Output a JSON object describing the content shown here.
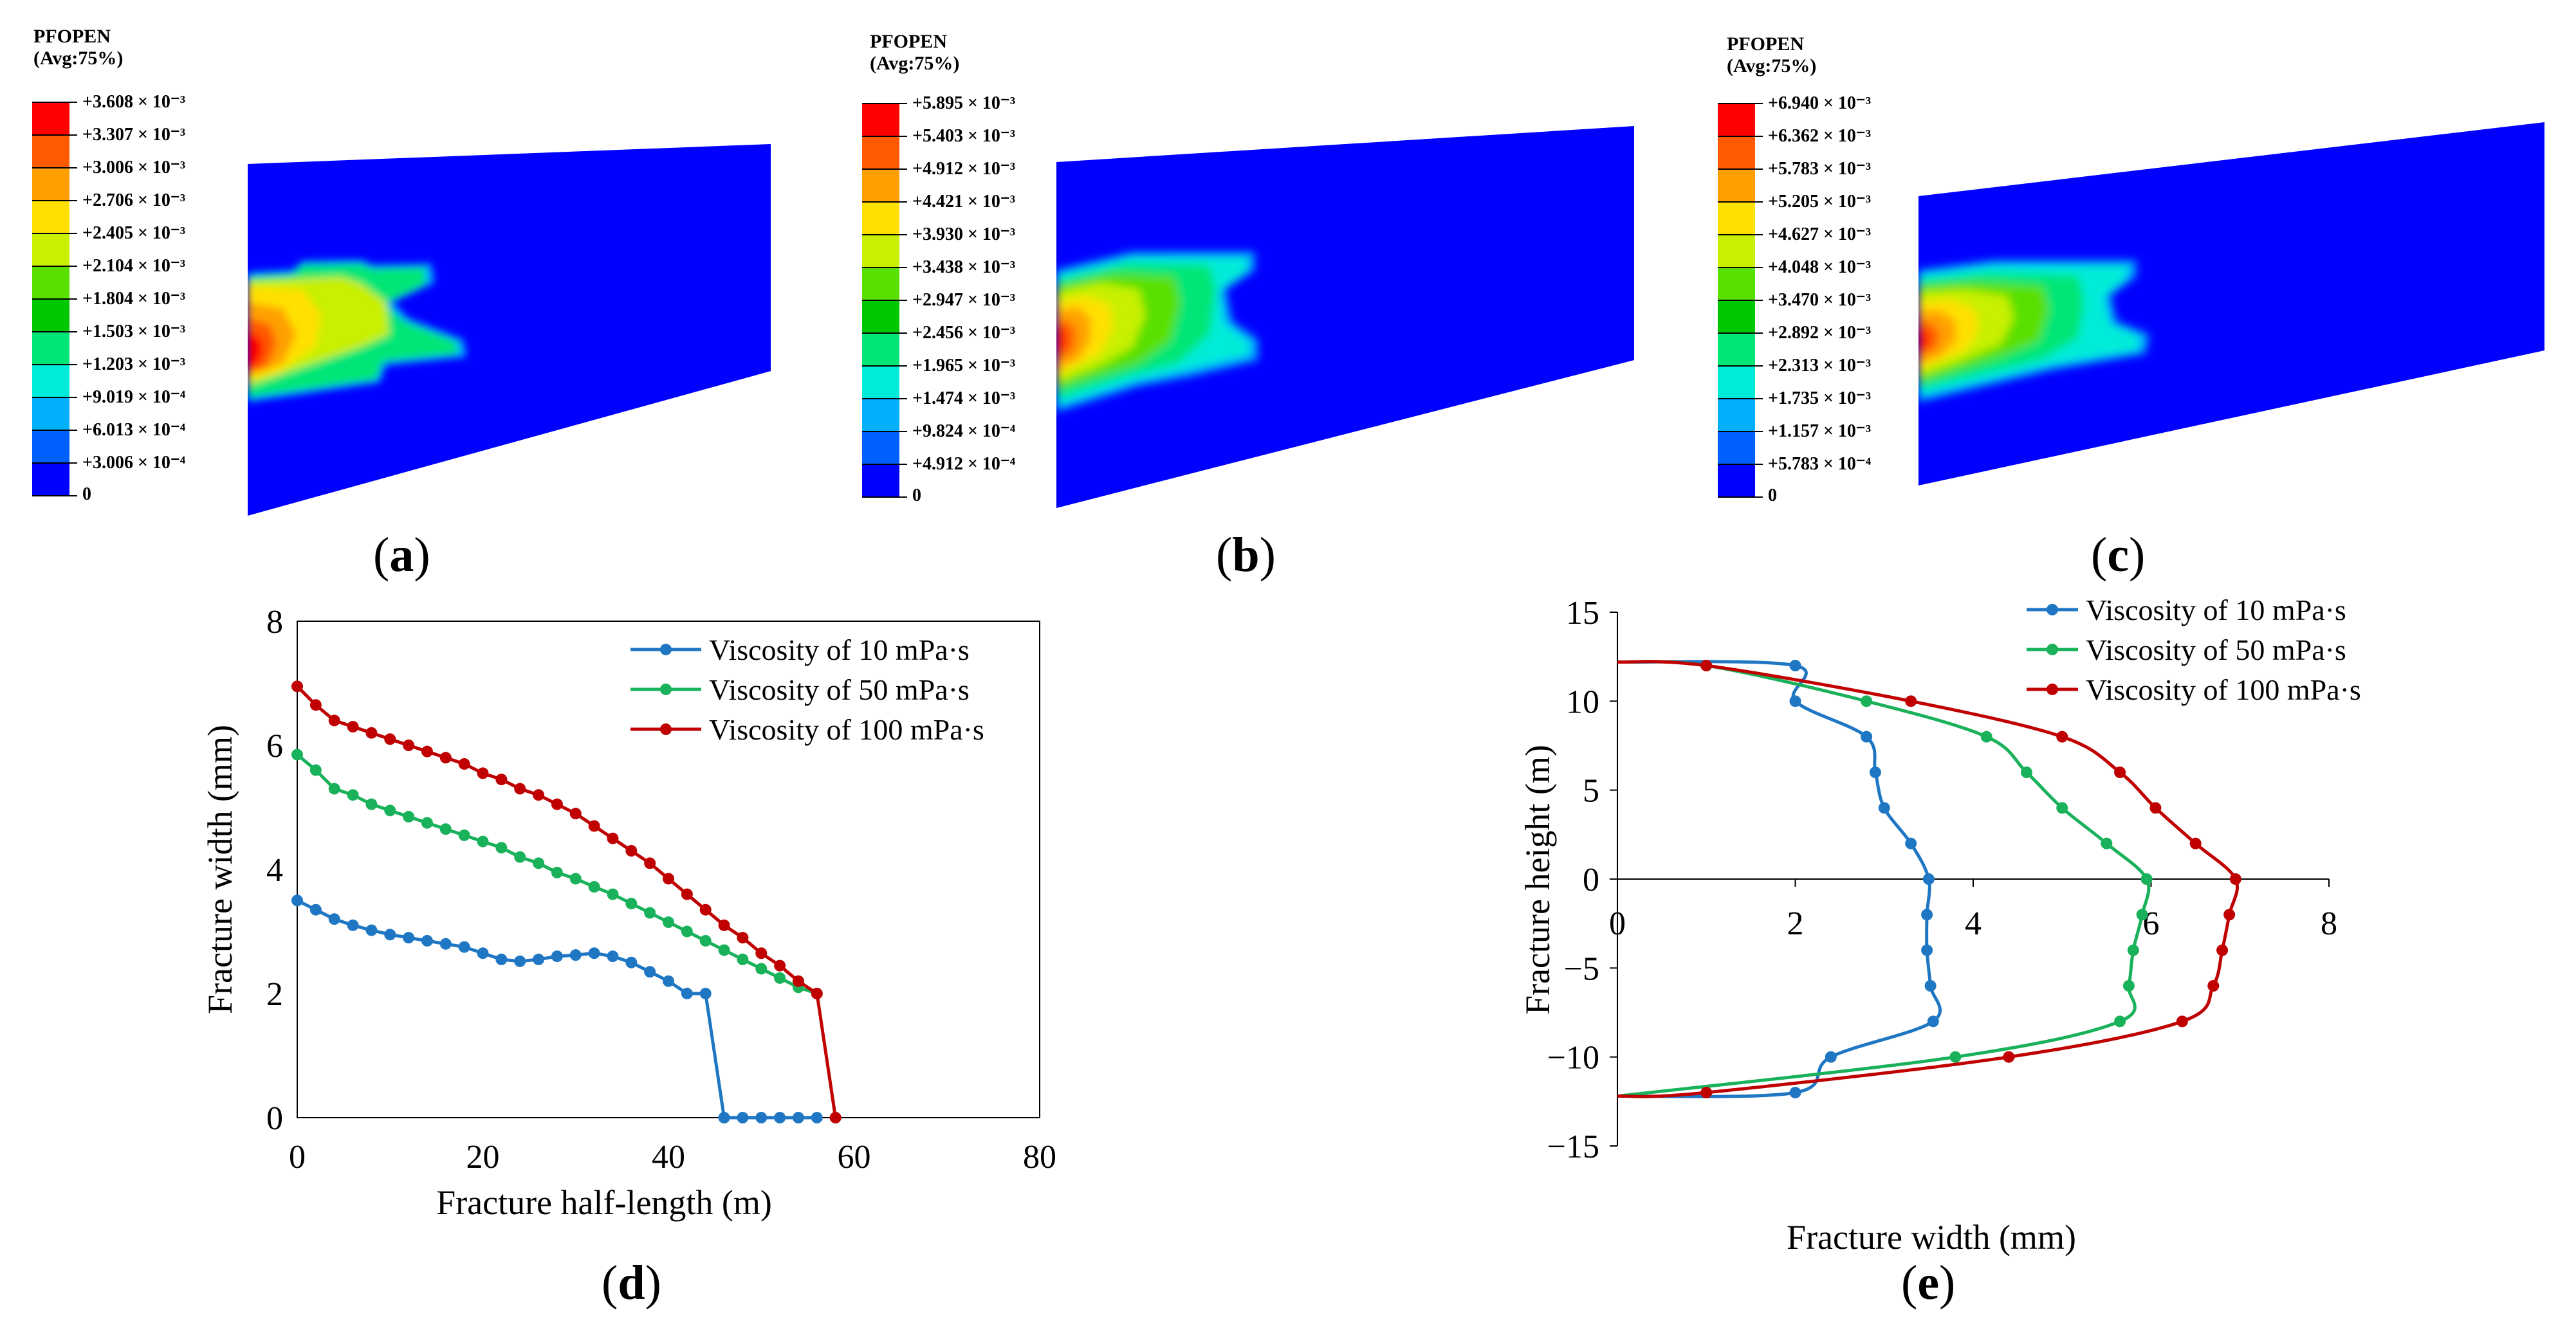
{
  "colors": {
    "scale": [
      "#0000ff",
      "#0060ff",
      "#00b0ff",
      "#00ecd8",
      "#00e676",
      "#00c800",
      "#5ae000",
      "#c8f000",
      "#ffe000",
      "#ffa000",
      "#ff5a00",
      "#ff0000"
    ],
    "series": [
      "#1f77c4",
      "#19b25a",
      "#c00000"
    ],
    "fracture_bg": "#0000ff"
  },
  "contours": [
    {
      "id": "a",
      "label": "a",
      "title_line1": "PFOPEN",
      "title_line2": "(Avg:75%)",
      "scale": [
        "+3.608 × 10⁻³",
        "+3.307 × 10⁻³",
        "+3.006 × 10⁻³",
        "+2.706 × 10⁻³",
        "+2.405 × 10⁻³",
        "+2.104 × 10⁻³",
        "+1.804 × 10⁻³",
        "+1.503 × 10⁻³",
        "+1.203 × 10⁻³",
        "+9.019 × 10⁻⁴",
        "+6.013 × 10⁻⁴",
        "+3.006 × 10⁻⁴",
        "0"
      ]
    },
    {
      "id": "b",
      "label": "b",
      "title_line1": "PFOPEN",
      "title_line2": "(Avg:75%)",
      "scale": [
        "+5.895 × 10⁻³",
        "+5.403 × 10⁻³",
        "+4.912 × 10⁻³",
        "+4.421 × 10⁻³",
        "+3.930 × 10⁻³",
        "+3.438 × 10⁻³",
        "+2.947 × 10⁻³",
        "+2.456 × 10⁻³",
        "+1.965 × 10⁻³",
        "+1.474 × 10⁻³",
        "+9.824 × 10⁻⁴",
        "+4.912 × 10⁻⁴",
        "0"
      ]
    },
    {
      "id": "c",
      "label": "c",
      "title_line1": "PFOPEN",
      "title_line2": "(Avg:75%)",
      "scale": [
        "+6.940 × 10⁻³",
        "+6.362 × 10⁻³",
        "+5.783 × 10⁻³",
        "+5.205 × 10⁻³",
        "+4.627 × 10⁻³",
        "+4.048 × 10⁻³",
        "+3.470 × 10⁻³",
        "+2.892 × 10⁻³",
        "+2.313 × 10⁻³",
        "+1.735 × 10⁻³",
        "+1.157 × 10⁻³",
        "+5.783 × 10⁻⁴",
        "0"
      ]
    }
  ],
  "chart_data": [
    {
      "id": "d",
      "panel_label": "d",
      "type": "line",
      "title": "",
      "xlabel": "Fracture half-length (m)",
      "ylabel": "Fracture width (mm)",
      "xlim": [
        0,
        80
      ],
      "ylim": [
        0,
        8
      ],
      "xticks": [
        "0",
        "20",
        "40",
        "60",
        "80"
      ],
      "yticks": [
        "0",
        "2",
        "4",
        "6",
        "8"
      ],
      "legend": "top-right",
      "series": [
        {
          "name": "Viscosity of 10 mPa·s",
          "x": [
            0,
            2,
            4,
            6,
            8,
            10,
            12,
            14,
            16,
            18,
            20,
            22,
            24,
            26,
            28,
            30,
            32,
            34,
            36,
            38,
            40,
            42,
            44,
            46,
            48,
            50,
            52,
            54,
            56
          ],
          "y": [
            3.5,
            3.35,
            3.2,
            3.1,
            3.02,
            2.95,
            2.9,
            2.85,
            2.8,
            2.75,
            2.65,
            2.55,
            2.52,
            2.55,
            2.6,
            2.62,
            2.65,
            2.6,
            2.5,
            2.35,
            2.2,
            2.0,
            2.0,
            0,
            0,
            0,
            0,
            0,
            0
          ]
        },
        {
          "name": "Viscosity of 50 mPa·s",
          "x": [
            0,
            2,
            4,
            6,
            8,
            10,
            12,
            14,
            16,
            18,
            20,
            22,
            24,
            26,
            28,
            30,
            32,
            34,
            36,
            38,
            40,
            42,
            44,
            46,
            48,
            50,
            52,
            54,
            56
          ],
          "y": [
            5.85,
            5.6,
            5.3,
            5.2,
            5.05,
            4.95,
            4.85,
            4.75,
            4.65,
            4.55,
            4.45,
            4.35,
            4.2,
            4.1,
            3.95,
            3.85,
            3.72,
            3.6,
            3.45,
            3.3,
            3.15,
            3.0,
            2.85,
            2.7,
            2.55,
            2.4,
            2.25,
            2.1,
            2.0
          ]
        },
        {
          "name": "Viscosity of 100 mPa·s",
          "x": [
            0,
            2,
            4,
            6,
            8,
            10,
            12,
            14,
            16,
            18,
            20,
            22,
            24,
            26,
            28,
            30,
            32,
            34,
            36,
            38,
            40,
            42,
            44,
            46,
            48,
            50,
            52,
            54,
            56,
            58
          ],
          "y": [
            6.95,
            6.65,
            6.4,
            6.3,
            6.2,
            6.1,
            6.0,
            5.9,
            5.8,
            5.7,
            5.55,
            5.45,
            5.3,
            5.2,
            5.05,
            4.9,
            4.7,
            4.5,
            4.3,
            4.1,
            3.85,
            3.6,
            3.35,
            3.1,
            2.9,
            2.65,
            2.45,
            2.2,
            2.0,
            0
          ]
        }
      ]
    },
    {
      "id": "e",
      "panel_label": "e",
      "type": "line",
      "title": "",
      "xlabel": "Fracture width (mm)",
      "ylabel": "Fracture height (m)",
      "xlim": [
        0,
        8
      ],
      "ylim": [
        -15,
        15
      ],
      "xticks": [
        "0",
        "2",
        "4",
        "6",
        "8"
      ],
      "yticks": [
        "15",
        "10",
        "5",
        "0",
        "−5",
        "−10",
        "−15"
      ],
      "legend": "top-right",
      "series": [
        {
          "name": "Viscosity of 10 mPa·s",
          "x": [
            0,
            2.0,
            2.0,
            2.8,
            2.9,
            3.0,
            3.3,
            3.5,
            3.48,
            3.48,
            3.52,
            3.55,
            2.4,
            2.0,
            0
          ],
          "y": [
            12.2,
            12.0,
            10.0,
            8.0,
            6.0,
            4.0,
            2.0,
            0,
            -2.0,
            -4.0,
            -6.0,
            -8.0,
            -10.0,
            -12.0,
            -12.2
          ]
        },
        {
          "name": "Viscosity of 50 mPa·s",
          "x": [
            0,
            1.0,
            2.8,
            4.15,
            4.6,
            5.0,
            5.5,
            5.95,
            5.9,
            5.8,
            5.75,
            5.65,
            3.8,
            0
          ],
          "y": [
            12.2,
            12.0,
            10.0,
            8.0,
            6.0,
            4.0,
            2.0,
            0,
            -2.0,
            -4.0,
            -6.0,
            -8.0,
            -10.0,
            -12.2
          ]
        },
        {
          "name": "Viscosity of 100 mPa·s",
          "x": [
            0,
            1.0,
            3.3,
            5.0,
            5.65,
            6.05,
            6.5,
            6.95,
            6.88,
            6.8,
            6.7,
            6.35,
            4.4,
            1.0,
            0
          ],
          "y": [
            12.2,
            12.0,
            10.0,
            8.0,
            6.0,
            4.0,
            2.0,
            0,
            -2.0,
            -4.0,
            -6.0,
            -8.0,
            -10.0,
            -12.0,
            -12.2
          ]
        }
      ]
    }
  ]
}
